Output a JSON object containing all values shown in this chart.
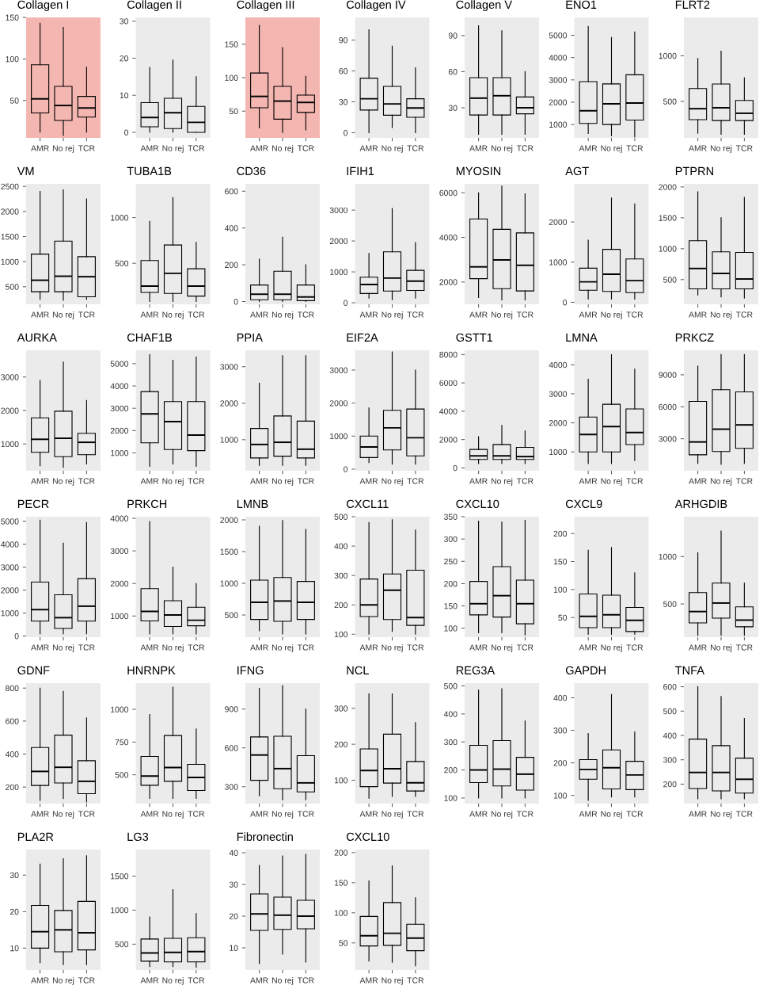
{
  "chart_data": [
    {
      "type": "box",
      "title": "Collagen I",
      "categories": [
        "AMR",
        "No rej",
        "TCR"
      ],
      "ylim": [
        5,
        150
      ],
      "yticks": [
        50,
        100,
        150
      ],
      "bands": [
        {
          "axis": "y",
          "from": 5,
          "to": 150,
          "color": "#f4b6b0"
        }
      ],
      "boxes": [
        {
          "low": 12,
          "q1": 35,
          "median": 52,
          "q3": 93,
          "high": 143
        },
        {
          "low": 8,
          "q1": 26,
          "median": 44,
          "q3": 67,
          "high": 138
        },
        {
          "low": 12,
          "q1": 30,
          "median": 41,
          "q3": 55,
          "high": 90
        }
      ]
    },
    {
      "type": "box",
      "title": "Collagen II",
      "categories": [
        "AMR",
        "No rej",
        "TCR"
      ],
      "ylim": [
        -1.5,
        31
      ],
      "yticks": [
        0,
        10,
        20,
        30
      ],
      "boxes": [
        {
          "low": 0,
          "q1": 1.5,
          "median": 4,
          "q3": 8,
          "high": 17.5
        },
        {
          "low": 0,
          "q1": 1,
          "median": 5.3,
          "q3": 9.2,
          "high": 19.5
        },
        {
          "low": 0,
          "q1": 0,
          "median": 2.7,
          "q3": 7,
          "high": 15
        }
      ]
    },
    {
      "type": "box",
      "title": "Collagen III",
      "categories": [
        "AMR",
        "No rej",
        "TCR"
      ],
      "ylim": [
        10,
        190
      ],
      "yticks": [
        50,
        100,
        150
      ],
      "bands": [
        {
          "axis": "y",
          "from": 10,
          "to": 190,
          "color": "#f4b6b0"
        }
      ],
      "boxes": [
        {
          "low": 25,
          "q1": 55,
          "median": 72,
          "q3": 107,
          "high": 178
        },
        {
          "low": 18,
          "q1": 38,
          "median": 65,
          "q3": 87,
          "high": 145
        },
        {
          "low": 22,
          "q1": 48,
          "median": 63,
          "q3": 74,
          "high": 102
        }
      ]
    },
    {
      "type": "box",
      "title": "Collagen IV",
      "categories": [
        "AMR",
        "No rej",
        "TCR"
      ],
      "ylim": [
        -5,
        112
      ],
      "yticks": [
        0,
        30,
        60,
        90
      ],
      "boxes": [
        {
          "low": 0,
          "q1": 22,
          "median": 33,
          "q3": 53,
          "high": 100
        },
        {
          "low": 5,
          "q1": 17,
          "median": 28,
          "q3": 45,
          "high": 84
        },
        {
          "low": 0,
          "q1": 15,
          "median": 24,
          "q3": 33,
          "high": 63
        }
      ]
    },
    {
      "type": "box",
      "title": "Collagen V",
      "categories": [
        "AMR",
        "No rej",
        "TCR"
      ],
      "ylim": [
        5,
        105
      ],
      "yticks": [
        30,
        60,
        90
      ],
      "boxes": [
        {
          "low": 8,
          "q1": 24,
          "median": 38,
          "q3": 55,
          "high": 98
        },
        {
          "low": 8,
          "q1": 24,
          "median": 40,
          "q3": 55,
          "high": 94
        },
        {
          "low": 8,
          "q1": 25,
          "median": 30,
          "q3": 39,
          "high": 60
        }
      ]
    },
    {
      "type": "box",
      "title": "ENO1",
      "categories": [
        "AMR",
        "No rej",
        "TCR"
      ],
      "ylim": [
        400,
        5800
      ],
      "yticks": [
        1000,
        2000,
        3000,
        4000,
        5000
      ],
      "boxes": [
        {
          "low": 600,
          "q1": 1050,
          "median": 1620,
          "q3": 2920,
          "high": 5400
        },
        {
          "low": 500,
          "q1": 1000,
          "median": 1930,
          "q3": 2820,
          "high": 4900
        },
        {
          "low": 450,
          "q1": 1200,
          "median": 1960,
          "q3": 3230,
          "high": 5150
        }
      ]
    },
    {
      "type": "box",
      "title": "FLRT2",
      "categories": [
        "AMR",
        "No rej",
        "TCR"
      ],
      "ylim": [
        100,
        1420
      ],
      "yticks": [
        500,
        1000
      ],
      "boxes": [
        {
          "low": 150,
          "q1": 300,
          "median": 420,
          "q3": 640,
          "high": 970
        },
        {
          "low": 140,
          "q1": 290,
          "median": 430,
          "q3": 690,
          "high": 1050
        },
        {
          "low": 140,
          "q1": 290,
          "median": 370,
          "q3": 510,
          "high": 760
        }
      ]
    },
    {
      "type": "box",
      "title": "VM",
      "categories": [
        "AMR",
        "No rej",
        "TCR"
      ],
      "ylim": [
        150,
        2550
      ],
      "yticks": [
        500,
        1000,
        1500,
        2000,
        2500
      ],
      "boxes": [
        {
          "low": 250,
          "q1": 400,
          "median": 630,
          "q3": 1150,
          "high": 2400
        },
        {
          "low": 230,
          "q1": 400,
          "median": 710,
          "q3": 1410,
          "high": 2430
        },
        {
          "low": 250,
          "q1": 300,
          "median": 700,
          "q3": 1100,
          "high": 2250
        }
      ]
    },
    {
      "type": "box",
      "title": "TUBA1B",
      "categories": [
        "AMR",
        "No rej",
        "TCR"
      ],
      "ylim": [
        50,
        1370
      ],
      "yticks": [
        500,
        1000
      ],
      "boxes": [
        {
          "low": 80,
          "q1": 180,
          "median": 250,
          "q3": 530,
          "high": 960
        },
        {
          "low": 80,
          "q1": 170,
          "median": 390,
          "q3": 700,
          "high": 1220
        },
        {
          "low": 80,
          "q1": 140,
          "median": 250,
          "q3": 440,
          "high": 730
        }
      ]
    },
    {
      "type": "box",
      "title": "CD36",
      "categories": [
        "AMR",
        "No rej",
        "TCR"
      ],
      "ylim": [
        -15,
        640
      ],
      "yticks": [
        0,
        200,
        400,
        600
      ],
      "boxes": [
        {
          "low": 0,
          "q1": 10,
          "median": 40,
          "q3": 90,
          "high": 230
        },
        {
          "low": 0,
          "q1": 10,
          "median": 40,
          "q3": 165,
          "high": 350
        },
        {
          "low": 0,
          "q1": 5,
          "median": 25,
          "q3": 90,
          "high": 200
        }
      ]
    },
    {
      "type": "box",
      "title": "IFIH1",
      "categories": [
        "AMR",
        "No rej",
        "TCR"
      ],
      "ylim": [
        -50,
        3850
      ],
      "yticks": [
        0,
        1000,
        2000,
        3000
      ],
      "boxes": [
        {
          "low": 150,
          "q1": 300,
          "median": 590,
          "q3": 830,
          "high": 1600
        },
        {
          "low": 100,
          "q1": 380,
          "median": 800,
          "q3": 1650,
          "high": 3050
        },
        {
          "low": 150,
          "q1": 400,
          "median": 700,
          "q3": 1050,
          "high": 1950
        }
      ]
    },
    {
      "type": "box",
      "title": "MYOSIN",
      "categories": [
        "AMR",
        "No rej",
        "TCR"
      ],
      "ylim": [
        1000,
        6400
      ],
      "yticks": [
        2000,
        4000,
        6000
      ],
      "boxes": [
        {
          "low": 1300,
          "q1": 2150,
          "median": 2680,
          "q3": 4830,
          "high": 6000
        },
        {
          "low": 1200,
          "q1": 1700,
          "median": 2990,
          "q3": 4360,
          "high": 6300
        },
        {
          "low": 1200,
          "q1": 1600,
          "median": 2750,
          "q3": 4200,
          "high": 5950
        }
      ]
    },
    {
      "type": "box",
      "title": "AGT",
      "categories": [
        "AMR",
        "No rej",
        "TCR"
      ],
      "ylim": [
        -50,
        2950
      ],
      "yticks": [
        0,
        1000,
        2000
      ],
      "boxes": [
        {
          "low": 80,
          "q1": 300,
          "median": 510,
          "q3": 850,
          "high": 1550
        },
        {
          "low": 80,
          "q1": 270,
          "median": 700,
          "q3": 1320,
          "high": 2600
        },
        {
          "low": 80,
          "q1": 240,
          "median": 540,
          "q3": 1080,
          "high": 2450
        }
      ]
    },
    {
      "type": "box",
      "title": "PTPRN",
      "categories": [
        "AMR",
        "No rej",
        "TCR"
      ],
      "ylim": [
        100,
        2050
      ],
      "yticks": [
        500,
        1000,
        1500,
        2000
      ],
      "boxes": [
        {
          "low": 250,
          "q1": 350,
          "median": 680,
          "q3": 1130,
          "high": 1920
        },
        {
          "low": 220,
          "q1": 350,
          "median": 600,
          "q3": 950,
          "high": 1500
        },
        {
          "low": 200,
          "q1": 350,
          "median": 510,
          "q3": 940,
          "high": 1830
        }
      ]
    },
    {
      "type": "box",
      "title": "AURKA",
      "categories": [
        "AMR",
        "No rej",
        "TCR"
      ],
      "ylim": [
        200,
        3800
      ],
      "yticks": [
        1000,
        2000,
        3000
      ],
      "boxes": [
        {
          "low": 350,
          "q1": 750,
          "median": 1140,
          "q3": 1780,
          "high": 2900
        },
        {
          "low": 300,
          "q1": 620,
          "median": 1170,
          "q3": 1980,
          "high": 3450
        },
        {
          "low": 400,
          "q1": 680,
          "median": 1050,
          "q3": 1320,
          "high": 2300
        }
      ]
    },
    {
      "type": "box",
      "title": "CHAF1B",
      "categories": [
        "AMR",
        "No rej",
        "TCR"
      ],
      "ylim": [
        200,
        5600
      ],
      "yticks": [
        1000,
        2000,
        3000,
        4000,
        5000
      ],
      "boxes": [
        {
          "low": 400,
          "q1": 1450,
          "median": 2750,
          "q3": 3750,
          "high": 5400
        },
        {
          "low": 500,
          "q1": 1150,
          "median": 2400,
          "q3": 3300,
          "high": 5150
        },
        {
          "low": 400,
          "q1": 1100,
          "median": 1800,
          "q3": 3300,
          "high": 5300
        }
      ]
    },
    {
      "type": "box",
      "title": "PPIA",
      "categories": [
        "AMR",
        "No rej",
        "TCR"
      ],
      "ylim": [
        150,
        3450
      ],
      "yticks": [
        1000,
        2000,
        3000
      ],
      "boxes": [
        {
          "low": 300,
          "q1": 500,
          "median": 870,
          "q3": 1310,
          "high": 2550
        },
        {
          "low": 300,
          "q1": 550,
          "median": 930,
          "q3": 1650,
          "high": 3300
        },
        {
          "low": 300,
          "q1": 500,
          "median": 740,
          "q3": 1510,
          "high": 3300
        }
      ]
    },
    {
      "type": "box",
      "title": "EIF2A",
      "categories": [
        "AMR",
        "No rej",
        "TCR"
      ],
      "ylim": [
        -50,
        3600
      ],
      "yticks": [
        0,
        1000,
        2000,
        3000
      ],
      "boxes": [
        {
          "low": 200,
          "q1": 350,
          "median": 670,
          "q3": 1000,
          "high": 1850
        },
        {
          "low": 150,
          "q1": 580,
          "median": 1250,
          "q3": 1780,
          "high": 3550
        },
        {
          "low": 150,
          "q1": 400,
          "median": 950,
          "q3": 1820,
          "high": 3000
        }
      ]
    },
    {
      "type": "box",
      "title": "GSTT1",
      "categories": [
        "AMR",
        "No rej",
        "TCR"
      ],
      "ylim": [
        -200,
        8300
      ],
      "yticks": [
        0,
        2000,
        4000,
        6000,
        8000
      ],
      "boxes": [
        {
          "low": 300,
          "q1": 600,
          "median": 850,
          "q3": 1300,
          "high": 2200
        },
        {
          "low": 300,
          "q1": 600,
          "median": 850,
          "q3": 1650,
          "high": 3000
        },
        {
          "low": 300,
          "q1": 600,
          "median": 800,
          "q3": 1450,
          "high": 2600
        }
      ]
    },
    {
      "type": "box",
      "title": "LMNA",
      "categories": [
        "AMR",
        "No rej",
        "TCR"
      ],
      "ylim": [
        350,
        4500
      ],
      "yticks": [
        1000,
        2000,
        3000,
        4000
      ],
      "boxes": [
        {
          "low": 600,
          "q1": 1000,
          "median": 1600,
          "q3": 2200,
          "high": 3500
        },
        {
          "low": 600,
          "q1": 1000,
          "median": 1870,
          "q3": 2640,
          "high": 4350
        },
        {
          "low": 700,
          "q1": 1250,
          "median": 1670,
          "q3": 2480,
          "high": 3850
        }
      ]
    },
    {
      "type": "box",
      "title": "PRKCZ",
      "categories": [
        "AMR",
        "No rej",
        "TCR"
      ],
      "ylim": [
        0,
        11300
      ],
      "yticks": [
        3000,
        6000,
        9000
      ],
      "boxes": [
        {
          "low": 700,
          "q1": 1500,
          "median": 2700,
          "q3": 6500,
          "high": 9800
        },
        {
          "low": 600,
          "q1": 1800,
          "median": 3900,
          "q3": 7600,
          "high": 10900
        },
        {
          "low": 700,
          "q1": 2100,
          "median": 4300,
          "q3": 7400,
          "high": 10900
        }
      ]
    },
    {
      "type": "box",
      "title": "PECR",
      "categories": [
        "AMR",
        "No rej",
        "TCR"
      ],
      "ylim": [
        -50,
        5200
      ],
      "yticks": [
        0,
        1000,
        2000,
        3000,
        4000,
        5000
      ],
      "boxes": [
        {
          "low": 100,
          "q1": 650,
          "median": 1150,
          "q3": 2350,
          "high": 5050
        },
        {
          "low": 100,
          "q1": 330,
          "median": 800,
          "q3": 1800,
          "high": 4050
        },
        {
          "low": 100,
          "q1": 650,
          "median": 1300,
          "q3": 2500,
          "high": 4950
        }
      ]
    },
    {
      "type": "box",
      "title": "PRKCH",
      "categories": [
        "AMR",
        "No rej",
        "TCR"
      ],
      "ylim": [
        350,
        4050
      ],
      "yticks": [
        1000,
        2000,
        3000,
        4000
      ],
      "boxes": [
        {
          "low": 450,
          "q1": 850,
          "median": 1140,
          "q3": 1840,
          "high": 3900
        },
        {
          "low": 450,
          "q1": 680,
          "median": 1030,
          "q3": 1470,
          "high": 2500
        },
        {
          "low": 450,
          "q1": 700,
          "median": 870,
          "q3": 1270,
          "high": 2000
        }
      ]
    },
    {
      "type": "box",
      "title": "LMNB",
      "categories": [
        "AMR",
        "No rej",
        "TCR"
      ],
      "ylim": [
        150,
        2050
      ],
      "yticks": [
        500,
        1000,
        1500,
        2000
      ],
      "boxes": [
        {
          "low": 250,
          "q1": 430,
          "median": 700,
          "q3": 1050,
          "high": 1900
        },
        {
          "low": 200,
          "q1": 400,
          "median": 720,
          "q3": 1090,
          "high": 1990
        },
        {
          "low": 200,
          "q1": 430,
          "median": 700,
          "q3": 1030,
          "high": 1850
        }
      ]
    },
    {
      "type": "box",
      "title": "CXCL11",
      "categories": [
        "AMR",
        "No rej",
        "TCR"
      ],
      "ylim": [
        90,
        500
      ],
      "yticks": [
        100,
        200,
        300,
        400,
        500
      ],
      "boxes": [
        {
          "low": 100,
          "q1": 160,
          "median": 200,
          "q3": 288,
          "high": 480
        },
        {
          "low": 110,
          "q1": 150,
          "median": 250,
          "q3": 305,
          "high": 490
        },
        {
          "low": 100,
          "q1": 130,
          "median": 157,
          "q3": 318,
          "high": 455
        }
      ]
    },
    {
      "type": "box",
      "title": "CXCL10",
      "categories": [
        "AMR",
        "No rej",
        "TCR"
      ],
      "ylim": [
        80,
        350
      ],
      "yticks": [
        100,
        150,
        200,
        250,
        300,
        350
      ],
      "boxes": [
        {
          "low": 90,
          "q1": 130,
          "median": 155,
          "q3": 205,
          "high": 340
        },
        {
          "low": 90,
          "q1": 125,
          "median": 173,
          "q3": 238,
          "high": 338
        },
        {
          "low": 85,
          "q1": 110,
          "median": 155,
          "q3": 208,
          "high": 342
        }
      ]
    },
    {
      "type": "box",
      "title": "CXCL9",
      "categories": [
        "AMR",
        "No rej",
        "TCR"
      ],
      "ylim": [
        15,
        230
      ],
      "yticks": [
        50,
        100,
        150,
        200
      ],
      "boxes": [
        {
          "low": 20,
          "q1": 32,
          "median": 52,
          "q3": 92,
          "high": 170
        },
        {
          "low": 20,
          "q1": 32,
          "median": 55,
          "q3": 90,
          "high": 175
        },
        {
          "low": 20,
          "q1": 25,
          "median": 45,
          "q3": 68,
          "high": 130
        }
      ]
    },
    {
      "type": "box",
      "title": "ARHGDIB",
      "categories": [
        "AMR",
        "No rej",
        "TCR"
      ],
      "ylim": [
        150,
        1420
      ],
      "yticks": [
        500,
        1000
      ],
      "boxes": [
        {
          "low": 170,
          "q1": 300,
          "median": 420,
          "q3": 620,
          "high": 1040
        },
        {
          "low": 170,
          "q1": 350,
          "median": 510,
          "q3": 720,
          "high": 1270
        },
        {
          "low": 170,
          "q1": 260,
          "median": 330,
          "q3": 470,
          "high": 720
        }
      ]
    },
    {
      "type": "box",
      "title": "GDNF",
      "categories": [
        "AMR",
        "No rej",
        "TCR"
      ],
      "ylim": [
        100,
        830
      ],
      "yticks": [
        200,
        400,
        600,
        800
      ],
      "boxes": [
        {
          "low": 120,
          "q1": 210,
          "median": 295,
          "q3": 440,
          "high": 800
        },
        {
          "low": 130,
          "q1": 225,
          "median": 320,
          "q3": 515,
          "high": 780
        },
        {
          "low": 110,
          "q1": 160,
          "median": 235,
          "q3": 360,
          "high": 620
        }
      ]
    },
    {
      "type": "box",
      "title": "HNRNPK",
      "categories": [
        "AMR",
        "No rej",
        "TCR"
      ],
      "ylim": [
        280,
        1200
      ],
      "yticks": [
        500,
        750,
        1000
      ],
      "boxes": [
        {
          "low": 320,
          "q1": 420,
          "median": 490,
          "q3": 640,
          "high": 960
        },
        {
          "low": 320,
          "q1": 450,
          "median": 555,
          "q3": 800,
          "high": 1170
        },
        {
          "low": 320,
          "q1": 380,
          "median": 480,
          "q3": 580,
          "high": 850
        }
      ]
    },
    {
      "type": "box",
      "title": "IFNG",
      "categories": [
        "AMR",
        "No rej",
        "TCR"
      ],
      "ylim": [
        170,
        1100
      ],
      "yticks": [
        300,
        600,
        900
      ],
      "boxes": [
        {
          "low": 230,
          "q1": 350,
          "median": 545,
          "q3": 685,
          "high": 1060
        },
        {
          "low": 200,
          "q1": 285,
          "median": 440,
          "q3": 690,
          "high": 1080
        },
        {
          "low": 200,
          "q1": 260,
          "median": 330,
          "q3": 540,
          "high": 900
        }
      ]
    },
    {
      "type": "box",
      "title": "NCL",
      "categories": [
        "AMR",
        "No rej",
        "TCR"
      ],
      "ylim": [
        35,
        370
      ],
      "yticks": [
        100,
        200,
        300
      ],
      "boxes": [
        {
          "low": 50,
          "q1": 82,
          "median": 127,
          "q3": 187,
          "high": 340
        },
        {
          "low": 55,
          "q1": 92,
          "median": 132,
          "q3": 228,
          "high": 340
        },
        {
          "low": 55,
          "q1": 70,
          "median": 93,
          "q3": 152,
          "high": 260
        }
      ]
    },
    {
      "type": "box",
      "title": "REG3A",
      "categories": [
        "AMR",
        "No rej",
        "TCR"
      ],
      "ylim": [
        80,
        510
      ],
      "yticks": [
        100,
        200,
        300,
        400,
        500
      ],
      "boxes": [
        {
          "low": 100,
          "q1": 155,
          "median": 200,
          "q3": 288,
          "high": 485
        },
        {
          "low": 100,
          "q1": 143,
          "median": 203,
          "q3": 305,
          "high": 490
        },
        {
          "low": 100,
          "q1": 128,
          "median": 185,
          "q3": 245,
          "high": 375
        }
      ]
    },
    {
      "type": "box",
      "title": "GAPDH",
      "categories": [
        "AMR",
        "No rej",
        "TCR"
      ],
      "ylim": [
        75,
        445
      ],
      "yticks": [
        100,
        200,
        300,
        400
      ],
      "boxes": [
        {
          "low": 85,
          "q1": 150,
          "median": 180,
          "q3": 210,
          "high": 290
        },
        {
          "low": 95,
          "q1": 120,
          "median": 185,
          "q3": 240,
          "high": 410
        },
        {
          "low": 95,
          "q1": 118,
          "median": 163,
          "q3": 205,
          "high": 295
        }
      ]
    },
    {
      "type": "box",
      "title": "TNFA",
      "categories": [
        "AMR",
        "No rej",
        "TCR"
      ],
      "ylim": [
        120,
        615
      ],
      "yticks": [
        200,
        300,
        400,
        500,
        600
      ],
      "boxes": [
        {
          "low": 140,
          "q1": 182,
          "median": 248,
          "q3": 385,
          "high": 600
        },
        {
          "low": 140,
          "q1": 172,
          "median": 248,
          "q3": 358,
          "high": 560
        },
        {
          "low": 140,
          "q1": 163,
          "median": 220,
          "q3": 307,
          "high": 470
        }
      ]
    },
    {
      "type": "box",
      "title": "PLA2R",
      "categories": [
        "AMR",
        "No rej",
        "TCR"
      ],
      "ylim": [
        4,
        37
      ],
      "yticks": [
        10,
        20,
        30
      ],
      "boxes": [
        {
          "low": 6,
          "q1": 10,
          "median": 14.5,
          "q3": 21.7,
          "high": 33
        },
        {
          "low": 5.5,
          "q1": 9,
          "median": 15,
          "q3": 20.3,
          "high": 34.5
        },
        {
          "low": 5.5,
          "q1": 9.5,
          "median": 14.2,
          "q3": 22.8,
          "high": 35.3
        }
      ]
    },
    {
      "type": "box",
      "title": "LG3",
      "categories": [
        "AMR",
        "No rej",
        "TCR"
      ],
      "ylim": [
        120,
        1890
      ],
      "yticks": [
        500,
        1000,
        1500
      ],
      "boxes": [
        {
          "low": 170,
          "q1": 250,
          "median": 370,
          "q3": 575,
          "high": 900
        },
        {
          "low": 170,
          "q1": 240,
          "median": 380,
          "q3": 585,
          "high": 1300
        },
        {
          "low": 160,
          "q1": 240,
          "median": 390,
          "q3": 595,
          "high": 950
        }
      ]
    },
    {
      "type": "box",
      "title": "Fibronectin",
      "categories": [
        "AMR",
        "No rej",
        "TCR"
      ],
      "ylim": [
        3,
        41
      ],
      "yticks": [
        10,
        20,
        30,
        40
      ],
      "boxes": [
        {
          "low": 5,
          "q1": 15.5,
          "median": 20.7,
          "q3": 27,
          "high": 36
        },
        {
          "low": 8,
          "q1": 15.8,
          "median": 20.3,
          "q3": 26,
          "high": 39
        },
        {
          "low": 5.5,
          "q1": 16,
          "median": 20,
          "q3": 25,
          "high": 39.5
        }
      ]
    },
    {
      "type": "box",
      "title": "CXCL10",
      "categories": [
        "AMR",
        "No rej",
        "TCR"
      ],
      "ylim": [
        5,
        205
      ],
      "yticks": [
        50,
        100,
        150,
        200
      ],
      "boxes": [
        {
          "low": 20,
          "q1": 45,
          "median": 62,
          "q3": 94,
          "high": 153
        },
        {
          "low": 18,
          "q1": 46,
          "median": 66,
          "q3": 117,
          "high": 178
        },
        {
          "low": 12,
          "q1": 37,
          "median": 58,
          "q3": 81,
          "high": 125
        }
      ]
    }
  ]
}
